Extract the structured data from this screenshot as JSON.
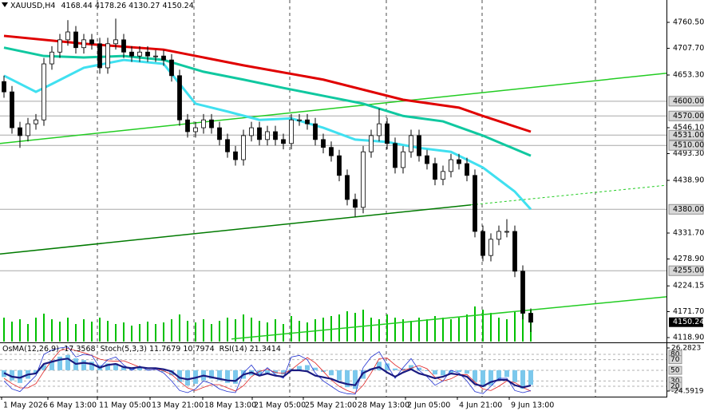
{
  "chart_data": {
    "type": "candlestick",
    "title": "XAUUSD,H4",
    "open": [
      4640,
      4619,
      4546,
      4530,
      4554,
      4562,
      4676,
      4700,
      4725,
      4741,
      4709,
      4725,
      4717,
      4668,
      4717,
      4725,
      4700,
      4692,
      4700,
      4692,
      4692,
      4684,
      4652,
      4562,
      4538,
      4546,
      4562,
      4546,
      4522,
      4497,
      4481,
      4530,
      4546,
      4522,
      4538,
      4522,
      4514,
      4562,
      4562,
      4554,
      4522,
      4506,
      4489,
      4449,
      4400,
      4384,
      4497,
      4530,
      4554,
      4514,
      4465,
      4497,
      4530,
      4489,
      4473,
      4441,
      4457,
      4481,
      4473,
      4449,
      4335,
      4286,
      4319,
      4335,
      4335,
      4254,
      4168.44
    ],
    "high": [
      4652,
      4631,
      4558,
      4566,
      4574,
      4688,
      4712,
      4737,
      4765,
      4753,
      4737,
      4737,
      4729,
      4729,
      4768,
      4737,
      4712,
      4712,
      4712,
      4704,
      4704,
      4696,
      4664,
      4574,
      4558,
      4574,
      4574,
      4558,
      4534,
      4509,
      4542,
      4558,
      4558,
      4550,
      4550,
      4534,
      4574,
      4574,
      4574,
      4566,
      4534,
      4518,
      4501,
      4461,
      4412,
      4509,
      4542,
      4585,
      4566,
      4526,
      4509,
      4542,
      4542,
      4501,
      4485,
      4469,
      4493,
      4493,
      4485,
      4461,
      4347,
      4331,
      4347,
      4360,
      4347,
      4266,
      4178.26
    ],
    "low": [
      4607,
      4534,
      4505,
      4518,
      4542,
      4550,
      4664,
      4688,
      4713,
      4697,
      4697,
      4705,
      4656,
      4656,
      4705,
      4688,
      4680,
      4680,
      4680,
      4680,
      4672,
      4640,
      4550,
      4526,
      4526,
      4534,
      4534,
      4510,
      4485,
      4469,
      4469,
      4518,
      4510,
      4510,
      4510,
      4502,
      4502,
      4550,
      4542,
      4510,
      4494,
      4477,
      4437,
      4388,
      4365,
      4372,
      4485,
      4518,
      4502,
      4453,
      4453,
      4485,
      4477,
      4461,
      4429,
      4429,
      4445,
      4461,
      4437,
      4323,
      4274,
      4274,
      4307,
      4323,
      4242,
      4156,
      4130.27
    ],
    "close": [
      4619,
      4546,
      4530,
      4554,
      4562,
      4676,
      4700,
      4725,
      4741,
      4709,
      4725,
      4717,
      4668,
      4717,
      4725,
      4700,
      4692,
      4700,
      4692,
      4692,
      4684,
      4652,
      4562,
      4538,
      4546,
      4562,
      4546,
      4522,
      4497,
      4481,
      4530,
      4546,
      4522,
      4538,
      4522,
      4514,
      4562,
      4562,
      4554,
      4522,
      4506,
      4489,
      4449,
      4400,
      4384,
      4497,
      4530,
      4554,
      4514,
      4465,
      4497,
      4530,
      4489,
      4473,
      4441,
      4457,
      4481,
      4473,
      4449,
      4335,
      4286,
      4319,
      4335,
      4335,
      4254,
      4168.44,
      4150.24
    ],
    "color_up": "#ffffff",
    "color_down": "#000000",
    "xlim": [
      -0.5,
      83
    ],
    "xticks": [
      {
        "value": -0.3,
        "label": "1 May 2026"
      },
      {
        "value": 5.5,
        "label": "6 May 13:00"
      },
      {
        "value": 11.7,
        "label": "11 May 05:00"
      },
      {
        "value": 18.3,
        "label": "13 May 21:00"
      },
      {
        "value": 24.9,
        "label": "18 May 13:00"
      },
      {
        "value": 31.1,
        "label": "21 May 05:00"
      },
      {
        "value": 37.5,
        "label": "25 May 21:00"
      },
      {
        "value": 44.1,
        "label": "28 May 13:00"
      },
      {
        "value": 50.3,
        "label": "2 Jun 05:00"
      },
      {
        "value": 56.8,
        "label": "4 Jun 21:00"
      },
      {
        "value": 63.3,
        "label": "9 Jun 13:00"
      }
    ],
    "ylim": [
      4110.8,
      4806
    ],
    "yticks": [
      {
        "value": 4760.5,
        "label": "4760.50"
      },
      {
        "value": 4707.7,
        "label": "4707.70"
      },
      {
        "value": 4653.3,
        "label": "4653.30"
      },
      {
        "value": 4546.1,
        "label": "4546.10"
      },
      {
        "value": 4493.3,
        "label": "4493.30"
      },
      {
        "value": 4438.9,
        "label": "4438.90"
      },
      {
        "value": 4331.7,
        "label": "4331.70"
      },
      {
        "value": 4278.9,
        "label": "4278.90"
      },
      4224.15,
      {
        "value": 4171.7,
        "label": "4171.70"
      },
      {
        "value": 4118.9,
        "label": "4118.90"
      }
    ],
    "levels": [
      {
        "value": 4600,
        "label": "4600.00"
      },
      {
        "value": 4570,
        "label": "4570.00"
      },
      {
        "value": 4531,
        "label": "4531.00"
      },
      {
        "value": 4510,
        "label": "4510.00"
      },
      {
        "value": 4380,
        "label": "4380.00"
      },
      {
        "value": 4255,
        "label": "4255.00"
      }
    ],
    "moving_averages": [
      {
        "color": "#e00000",
        "x": [
          0,
          10,
          20,
          30,
          40,
          50,
          57,
          60,
          66
        ],
        "values": [
          4733,
          4717,
          4705,
          4673,
          4644,
          4603,
          4587,
          4570,
          4538
        ]
      },
      {
        "color": "#10c8a0",
        "x": [
          0,
          5,
          10,
          15,
          20,
          25,
          30,
          35,
          40,
          45,
          50,
          55,
          60,
          66
        ],
        "values": [
          4709,
          4692,
          4689,
          4692,
          4684,
          4660,
          4644,
          4627,
          4611,
          4595,
          4570,
          4559,
          4530,
          4489
        ]
      },
      {
        "color": "#40e0f0",
        "x": [
          0,
          4,
          6,
          10,
          15,
          20,
          24,
          28,
          32,
          36,
          40,
          44,
          48,
          52,
          56,
          60,
          64,
          66
        ],
        "values": [
          4652,
          4619,
          4635,
          4668,
          4684,
          4676,
          4595,
          4579,
          4562,
          4565,
          4546,
          4522,
          4517,
          4505,
          4497,
          4465,
          4416,
          4380
        ]
      }
    ],
    "trendlines": [
      {
        "color": "#22cc22",
        "x": [
          -0.5,
          83
        ],
        "values": [
          4514,
          4657
        ]
      },
      {
        "color": "#007a00",
        "x": [
          -0.5,
          58.5
        ],
        "values": [
          4289,
          4389
        ]
      },
      {
        "color": "#22cc22",
        "x": [
          58.5,
          83
        ],
        "values": [
          4389,
          4429
        ],
        "dashed": true
      },
      {
        "color": "#22cc22",
        "x": [
          28.5,
          83
        ],
        "values": [
          4116,
          4202
        ]
      }
    ],
    "volume": {
      "color": "#00c000",
      "values": [
        30,
        25,
        28,
        22,
        30,
        35,
        28,
        25,
        30,
        22,
        28,
        25,
        30,
        26,
        22,
        24,
        20,
        22,
        25,
        22,
        24,
        28,
        34,
        26,
        24,
        28,
        22,
        26,
        30,
        28,
        34,
        30,
        26,
        24,
        28,
        22,
        32,
        26,
        24,
        28,
        30,
        32,
        34,
        38,
        36,
        40,
        30,
        28,
        34,
        30,
        28,
        26,
        30,
        28,
        32,
        30,
        28,
        30,
        34,
        44,
        40,
        36,
        30,
        28,
        38,
        42,
        40
      ]
    },
    "indicators": {
      "ylim": [
        0.5,
        99.5
      ],
      "yticks": [
        80,
        70,
        50,
        30,
        20
      ],
      "y2lim": [
        -31.19,
        30.99
      ],
      "y2ticks": [
        26.2823,
        -24.5919
      ],
      "osma": {
        "name": "OsMA(12,26,9)",
        "color": "#7cc8ec",
        "values": [
          -8,
          -12,
          -15,
          -10,
          -4,
          6,
          12,
          16,
          18,
          14,
          12,
          10,
          6,
          8,
          8,
          5,
          2,
          3,
          1,
          0,
          -2,
          -6,
          -14,
          -18,
          -16,
          -12,
          -10,
          -12,
          -15,
          -16,
          -10,
          -6,
          -6,
          -4,
          -4,
          -5,
          2,
          5,
          6,
          3,
          -2,
          -6,
          -12,
          -20,
          -22,
          -10,
          2,
          10,
          8,
          2,
          2,
          6,
          3,
          -1,
          -5,
          -6,
          -3,
          -2,
          -4,
          -14,
          -20,
          -18,
          -12,
          -8,
          -14,
          -22,
          -17.3568
        ]
      },
      "stoch": {
        "name": "Stoch(5,3,3)",
        "main": {
          "color": "#1f2fd0",
          "values": [
            30,
            15,
            10,
            25,
            40,
            80,
            88,
            92,
            94,
            75,
            80,
            78,
            55,
            70,
            75,
            60,
            50,
            58,
            50,
            52,
            45,
            30,
            12,
            8,
            15,
            30,
            25,
            15,
            10,
            8,
            45,
            60,
            40,
            55,
            42,
            35,
            75,
            78,
            70,
            45,
            30,
            20,
            10,
            6,
            5,
            55,
            75,
            85,
            60,
            35,
            55,
            72,
            50,
            38,
            22,
            30,
            50,
            45,
            30,
            10,
            6,
            20,
            35,
            35,
            12,
            8,
            11.7679
          ]
        },
        "signal": {
          "color": "#e02020",
          "values": [
            35,
            25,
            17,
            17,
            25,
            48,
            69,
            87,
            91,
            87,
            83,
            78,
            71,
            68,
            67,
            68,
            62,
            56,
            53,
            53,
            49,
            42,
            29,
            17,
            12,
            18,
            23,
            23,
            17,
            11,
            21,
            38,
            48,
            52,
            46,
            44,
            51,
            63,
            74,
            64,
            48,
            32,
            20,
            12,
            7,
            22,
            45,
            72,
            73,
            60,
            50,
            54,
            59,
            53,
            37,
            30,
            34,
            42,
            42,
            28,
            15,
            12,
            20,
            30,
            27,
            18,
            10.7974
          ]
        }
      },
      "rsi": {
        "name": "RSI(14)",
        "color": "#1a1a80",
        "values": [
          45,
          38,
          36,
          42,
          44,
          62,
          66,
          70,
          72,
          62,
          64,
          62,
          55,
          60,
          62,
          56,
          54,
          56,
          54,
          54,
          52,
          48,
          36,
          33,
          36,
          40,
          37,
          34,
          31,
          30,
          42,
          46,
          40,
          44,
          40,
          38,
          50,
          50,
          48,
          40,
          37,
          34,
          28,
          24,
          22,
          45,
          52,
          56,
          46,
          38,
          46,
          52,
          44,
          40,
          35,
          38,
          44,
          42,
          38,
          24,
          20,
          28,
          32,
          32,
          22,
          18,
          21.3414
        ]
      }
    }
  }
}
